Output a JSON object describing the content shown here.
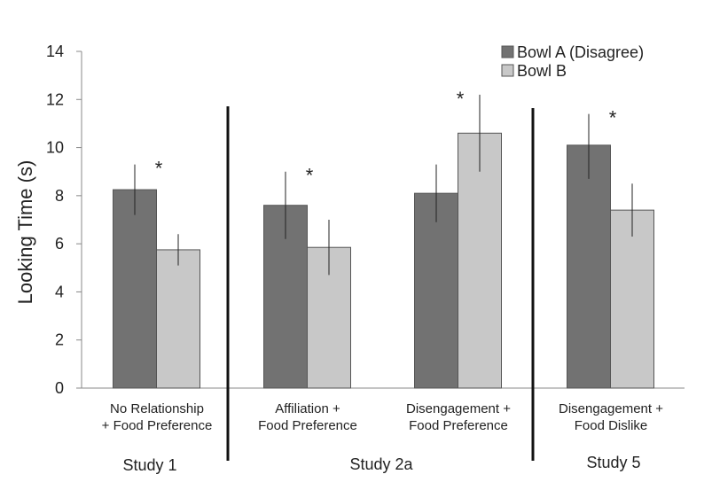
{
  "chart_data": {
    "type": "bar",
    "ylabel": "Looking Time (s)",
    "xlabel": "",
    "ylim": [
      0,
      14
    ],
    "yticks": [
      0,
      2,
      4,
      6,
      8,
      10,
      12,
      14
    ],
    "grid": false,
    "legend_position": "top-right",
    "categories": [
      [
        "No Relationship",
        "+ Food Preference"
      ],
      [
        "Affiliation +",
        "Food Preference"
      ],
      [
        "Disengagement +",
        "Food Preference"
      ],
      [
        "Disengagement +",
        "Food Dislike"
      ]
    ],
    "series": [
      {
        "name": "Bowl A (Disagree)",
        "color": "#727272",
        "values": [
          8.25,
          7.6,
          8.1,
          10.1
        ],
        "error": [
          [
            7.2,
            9.3
          ],
          [
            6.2,
            9.0
          ],
          [
            6.9,
            9.3
          ],
          [
            8.7,
            11.4
          ]
        ]
      },
      {
        "name": "Bowl B",
        "color": "#c8c8c8",
        "values": [
          5.75,
          5.85,
          10.6,
          7.4
        ],
        "error": [
          [
            5.1,
            6.4
          ],
          [
            4.7,
            7.0
          ],
          [
            9.0,
            12.2
          ],
          [
            6.3,
            8.5
          ]
        ]
      }
    ],
    "significance": [
      {
        "category_index": 0,
        "label": "*"
      },
      {
        "category_index": 1,
        "label": "*"
      },
      {
        "category_index": 2,
        "label": "*"
      },
      {
        "category_index": 3,
        "label": "*"
      }
    ],
    "groups": [
      {
        "label": "Study 1",
        "categories": [
          0
        ]
      },
      {
        "label": "Study 2a",
        "categories": [
          1,
          2
        ]
      },
      {
        "label": "Study 5",
        "categories": [
          3
        ]
      }
    ]
  }
}
